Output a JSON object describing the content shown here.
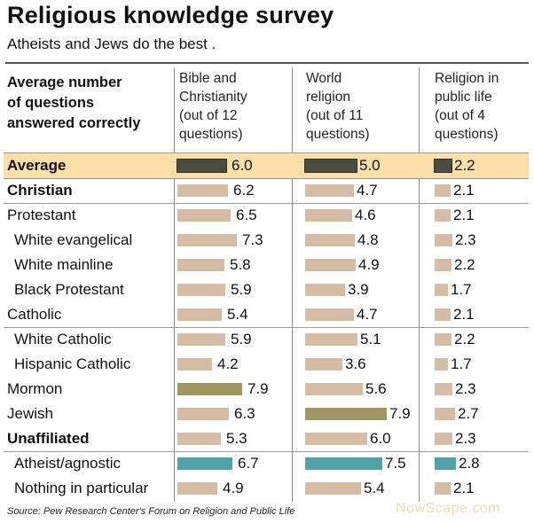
{
  "header": {
    "title": "Religious knowledge survey",
    "subtitle": "Atheists and Jews do the best ."
  },
  "row_header": [
    "Average number",
    "of questions",
    "answered correctly"
  ],
  "columns": [
    {
      "head": [
        "Bible and",
        "Christianity",
        "(out of 12",
        "questions)"
      ]
    },
    {
      "head": [
        "World",
        "religion",
        "(out of 11",
        "questions)"
      ]
    },
    {
      "head": [
        "Religion in",
        "public life",
        "(out of 4",
        "questions)"
      ]
    }
  ],
  "colors": {
    "default_bar": "#d4bda4",
    "average_bar": "#4a4d3f",
    "highest_bar": "#9f9661",
    "atheist_bar": "#4fa3a6",
    "highlight_row": "#fbdfa8"
  },
  "chart_data": {
    "type": "bar",
    "title": "Religious knowledge survey",
    "subtitle": "Atheists and Jews do the best .",
    "categories": [
      "Average",
      "Christian",
      "Protestant",
      "White evangelical",
      "White mainline",
      "Black  Protestant",
      "Catholic",
      "White Catholic",
      "Hispanic Catholic",
      "Mormon",
      "Jewish",
      "Unaffiliated",
      "Atheist/agnostic",
      "Nothing in particular"
    ],
    "series": [
      {
        "name": "Bible and Christianity (out of 12 questions)",
        "values": [
          6.0,
          6.2,
          6.5,
          7.3,
          5.8,
          5.9,
          5.4,
          5.9,
          4.2,
          7.9,
          6.3,
          5.3,
          6.7,
          4.9
        ],
        "labels": [
          "6.0",
          "6.2",
          "6.5",
          "7.3",
          "5.8",
          "5.9",
          "5.4",
          "5.9",
          "4.2",
          "7.9",
          "6.3",
          "5.3",
          "6.7",
          "4.9"
        ]
      },
      {
        "name": "World religion (out of 11 questions)",
        "values": [
          5.0,
          4.7,
          4.6,
          4.8,
          4.9,
          3.9,
          4.7,
          5.1,
          3.6,
          5.6,
          7.9,
          6.0,
          7.5,
          5.4
        ],
        "labels": [
          "5.0",
          "4.7",
          "4.6",
          "4.8",
          "4.9",
          "3.9",
          "4.7",
          "5.1",
          "3.6",
          "5.6",
          "7.9",
          "6.0",
          "7.5",
          "5.4"
        ]
      },
      {
        "name": "Religion in public life (out of 4 questions)",
        "values": [
          2.2,
          2.1,
          2.1,
          2.3,
          2.2,
          1.7,
          2.1,
          2.2,
          1.7,
          2.3,
          2.7,
          2.3,
          2.8,
          2.1
        ],
        "labels": [
          "2.2",
          "2.1",
          "2.1",
          "2.3",
          "2.2",
          "1.7",
          "2.1",
          "2.2",
          "1.7",
          "2.3",
          "2.7",
          "2.3",
          "2.8",
          "2.1"
        ]
      }
    ]
  },
  "footer": {
    "source": "Source: Pew Research Center's Forum on Religion and Public Life",
    "watermark": "NowScape.com"
  }
}
